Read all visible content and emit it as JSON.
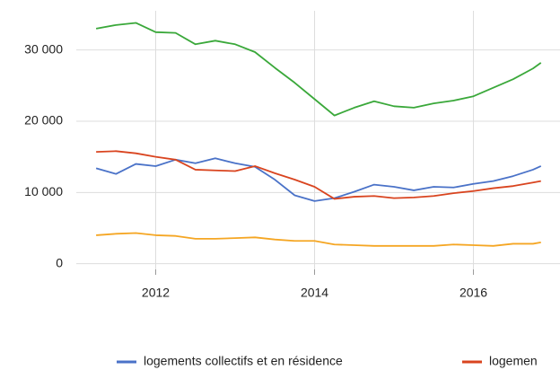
{
  "chart_data": {
    "type": "line",
    "x": [
      2011.25,
      2011.5,
      2011.75,
      2012,
      2012.25,
      2012.5,
      2012.75,
      2013,
      2013.25,
      2013.5,
      2013.75,
      2014,
      2014.25,
      2014.5,
      2014.75,
      2015,
      2015.25,
      2015.5,
      2015.75,
      2016,
      2016.25,
      2016.5,
      2016.75,
      2016.85
    ],
    "series": [
      {
        "color": "#3aa83a",
        "values": [
          33000,
          33500,
          33800,
          32500,
          32400,
          30800,
          31300,
          30800,
          29700,
          27500,
          25400,
          23100,
          20800,
          21900,
          22800,
          22100,
          21900,
          22500,
          22900,
          23500,
          24700,
          25900,
          27400,
          28200
        ]
      },
      {
        "name": "logements collectifs et en résidence",
        "color": "#4a72c8",
        "values": [
          13400,
          12600,
          14000,
          13700,
          14600,
          14100,
          14800,
          14100,
          13600,
          11800,
          9600,
          8800,
          9200,
          10100,
          11100,
          10800,
          10300,
          10800,
          10700,
          11200,
          11600,
          12300,
          13200,
          13700
        ]
      },
      {
        "name": "logemen",
        "color": "#d9441f",
        "values": [
          15700,
          15800,
          15500,
          15000,
          14600,
          13200,
          13100,
          13000,
          13700,
          12700,
          11800,
          10800,
          9100,
          9400,
          9500,
          9200,
          9300,
          9500,
          9900,
          10200,
          10600,
          10900,
          11400,
          11600
        ]
      },
      {
        "color": "#f5a623",
        "values": [
          4000,
          4200,
          4300,
          4000,
          3900,
          3500,
          3500,
          3600,
          3700,
          3400,
          3200,
          3200,
          2700,
          2600,
          2500,
          2500,
          2500,
          2500,
          2700,
          2600,
          2500,
          2800,
          2800,
          3000
        ]
      }
    ],
    "xlim": [
      2011,
      2017.09
    ],
    "xticks": [
      2012,
      2014,
      2016
    ],
    "ylim": [
      -800,
      35500
    ],
    "yticks": [
      0,
      {
        "value": 10000,
        "label": "10 000"
      },
      {
        "value": 20000,
        "label": "20 000"
      },
      {
        "value": 30000,
        "label": "30 000"
      }
    ],
    "grid": true
  }
}
